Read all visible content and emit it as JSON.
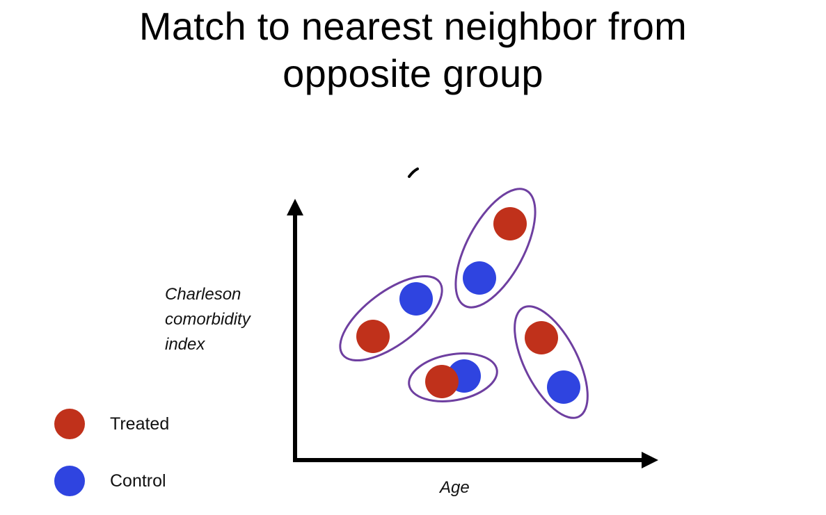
{
  "title": {
    "line1": "Match to nearest neighbor from",
    "line2": "opposite group"
  },
  "axes": {
    "y_label_lines": [
      "Charleson",
      "comorbidity",
      "index"
    ],
    "x_label": "Age"
  },
  "legend": {
    "treated": {
      "label": "Treated",
      "color": "#c0311b"
    },
    "control": {
      "label": "Control",
      "color": "#2f44e0"
    }
  },
  "colors": {
    "treated": "#c0311b",
    "control": "#2f44e0",
    "match_outline": "#6e3fa0",
    "axis": "#000000"
  },
  "matched_pairs": [
    {
      "name": "pair-left",
      "members": [
        "treated",
        "control"
      ]
    },
    {
      "name": "pair-top",
      "members": [
        "treated",
        "control"
      ]
    },
    {
      "name": "pair-bottom",
      "members": [
        "treated",
        "control"
      ]
    },
    {
      "name": "pair-right",
      "members": [
        "treated",
        "control"
      ]
    }
  ]
}
